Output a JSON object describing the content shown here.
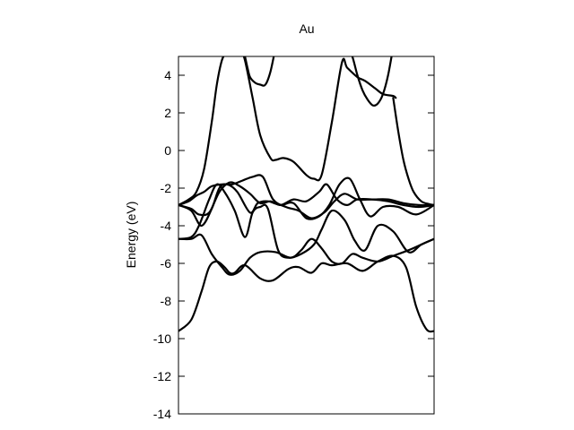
{
  "chart_data": {
    "type": "line",
    "title": "Au",
    "xlabel": "",
    "ylabel": "Energy (eV)",
    "xlim": [
      0,
      1
    ],
    "ylim": [
      -14,
      5
    ],
    "yticks": [
      4,
      2,
      0,
      -2,
      -4,
      -6,
      -8,
      -10,
      -12,
      -14
    ],
    "grid": false,
    "legend": "none",
    "line_color": "#000000",
    "series": [
      {
        "x": [
          0,
          0.05,
          0.09,
          0.12,
          0.15,
          0.18,
          0.2,
          0.22,
          0.26,
          0.32,
          0.37,
          0.43,
          0.47,
          0.52,
          0.56,
          0.6,
          0.66,
          0.72,
          0.78,
          0.84,
          0.89,
          0.93,
          0.97,
          1.0
        ],
        "y": [
          -9.6,
          -9.0,
          -7.5,
          -6.2,
          -5.9,
          -6.2,
          -6.5,
          -6.5,
          -6.1,
          -6.8,
          -6.9,
          -6.3,
          -6.2,
          -6.5,
          -6.0,
          -6.1,
          -6.0,
          -6.4,
          -5.9,
          -5.6,
          -6.2,
          -8.3,
          -9.5,
          -9.6
        ]
      },
      {
        "x": [
          0,
          0.05,
          0.09,
          0.13,
          0.17,
          0.2,
          0.24,
          0.28,
          0.32,
          0.38,
          0.44,
          0.48,
          0.52,
          0.56,
          0.6,
          0.64,
          0.68,
          0.72,
          0.78,
          0.84,
          0.9,
          0.95,
          1.0
        ],
        "y": [
          -4.7,
          -4.7,
          -4.5,
          -5.5,
          -6.2,
          -6.6,
          -6.4,
          -5.7,
          -5.4,
          -5.4,
          -5.7,
          -5.3,
          -4.7,
          -5.2,
          -5.9,
          -6.0,
          -5.5,
          -5.7,
          -5.9,
          -5.6,
          -5.3,
          -5.0,
          -4.7
        ]
      },
      {
        "x": [
          0,
          0.05,
          0.08,
          0.12,
          0.15,
          0.18,
          0.22,
          0.26,
          0.29,
          0.32,
          0.35,
          0.39,
          0.43,
          0.48,
          0.53,
          0.56,
          0.6,
          0.65,
          0.69,
          0.73,
          0.78,
          0.84,
          0.9,
          0.95,
          1.0
        ],
        "y": [
          -4.7,
          -4.6,
          -4.0,
          -2.6,
          -1.8,
          -2.2,
          -3.2,
          -4.6,
          -3.3,
          -3.0,
          -3.1,
          -5.3,
          -5.7,
          -5.5,
          -5.0,
          -4.2,
          -3.2,
          -3.7,
          -4.8,
          -5.3,
          -4.0,
          -4.3,
          -5.4,
          -5.0,
          -4.7
        ]
      },
      {
        "x": [
          0,
          0.05,
          0.09,
          0.13,
          0.16,
          0.19,
          0.23,
          0.28,
          0.31,
          0.35,
          0.4,
          0.45,
          0.5,
          0.55,
          0.59,
          0.63,
          0.67,
          0.71,
          0.75,
          0.8,
          0.86,
          0.93,
          1.0
        ],
        "y": [
          -2.9,
          -3.2,
          -4.0,
          -3.1,
          -2.0,
          -1.8,
          -2.2,
          -3.3,
          -2.8,
          -2.7,
          -2.9,
          -2.8,
          -3.6,
          -3.5,
          -2.9,
          -1.8,
          -1.5,
          -2.6,
          -3.5,
          -3.0,
          -3.0,
          -3.4,
          -2.9
        ]
      },
      {
        "x": [
          0,
          0.05,
          0.08,
          0.12,
          0.16,
          0.2,
          0.24,
          0.28,
          0.32,
          0.36,
          0.4,
          0.45,
          0.5,
          0.55,
          0.58,
          0.62,
          0.66,
          0.7,
          0.76,
          0.82,
          0.88,
          0.94,
          1.0
        ],
        "y": [
          -2.9,
          -3.1,
          -3.4,
          -3.3,
          -2.2,
          -1.7,
          -1.9,
          -2.3,
          -2.8,
          -2.7,
          -2.9,
          -2.6,
          -2.7,
          -2.2,
          -1.8,
          -2.6,
          -2.9,
          -2.6,
          -2.6,
          -2.7,
          -2.9,
          -3.0,
          -2.9
        ]
      },
      {
        "x": [
          0,
          0.04,
          0.07,
          0.1,
          0.13,
          0.17,
          0.21,
          0.25,
          0.29,
          0.33,
          0.37,
          0.42,
          0.47,
          0.52,
          0.57,
          0.61,
          0.65,
          0.7,
          0.76,
          0.82,
          0.88,
          0.94,
          1.0
        ],
        "y": [
          -2.9,
          -2.7,
          -2.4,
          -2.2,
          -1.9,
          -1.8,
          -1.8,
          -1.6,
          -1.4,
          -1.4,
          -2.6,
          -3.0,
          -3.2,
          -3.6,
          -3.3,
          -2.7,
          -2.3,
          -2.6,
          -2.6,
          -2.6,
          -2.8,
          -2.9,
          -2.9
        ]
      },
      {
        "x": [
          0,
          0.04,
          0.07,
          0.1,
          0.13,
          0.15,
          0.17,
          0.19,
          0.2
        ],
        "y": [
          -2.9,
          -2.6,
          -2.2,
          -1.0,
          1.5,
          3.5,
          4.8,
          5.3,
          5.5
        ]
      },
      {
        "x": [
          0.25,
          0.26,
          0.27,
          0.28,
          0.3,
          0.32,
          0.34,
          0.36,
          0.38
        ],
        "y": [
          5.5,
          5.0,
          4.4,
          3.9,
          3.6,
          3.5,
          3.5,
          4.2,
          5.5
        ]
      },
      {
        "x": [
          0.24,
          0.26,
          0.29,
          0.32,
          0.36,
          0.38,
          0.41,
          0.45,
          0.5,
          0.53,
          0.56,
          0.6,
          0.64,
          0.66,
          0.7,
          0.73,
          0.77,
          0.8,
          0.84,
          0.85
        ],
        "y": [
          5.5,
          4.8,
          2.8,
          0.8,
          -0.4,
          -0.5,
          -0.4,
          -0.6,
          -1.3,
          -1.5,
          -1.3,
          1.5,
          4.7,
          4.4,
          3.9,
          3.7,
          3.3,
          3.0,
          2.9,
          2.8
        ]
      },
      {
        "x": [
          0.66,
          0.68,
          0.7,
          0.72,
          0.74,
          0.76,
          0.78,
          0.8,
          0.82,
          0.84
        ],
        "y": [
          5.5,
          5.0,
          4.0,
          3.2,
          2.7,
          2.4,
          2.5,
          3.0,
          4.0,
          5.5
        ]
      },
      {
        "x": [
          0.84,
          0.86,
          0.88,
          0.9,
          0.92,
          0.95,
          0.98,
          1.0
        ],
        "y": [
          2.8,
          1.0,
          -0.5,
          -1.5,
          -2.2,
          -2.7,
          -2.85,
          -2.9
        ]
      }
    ]
  }
}
